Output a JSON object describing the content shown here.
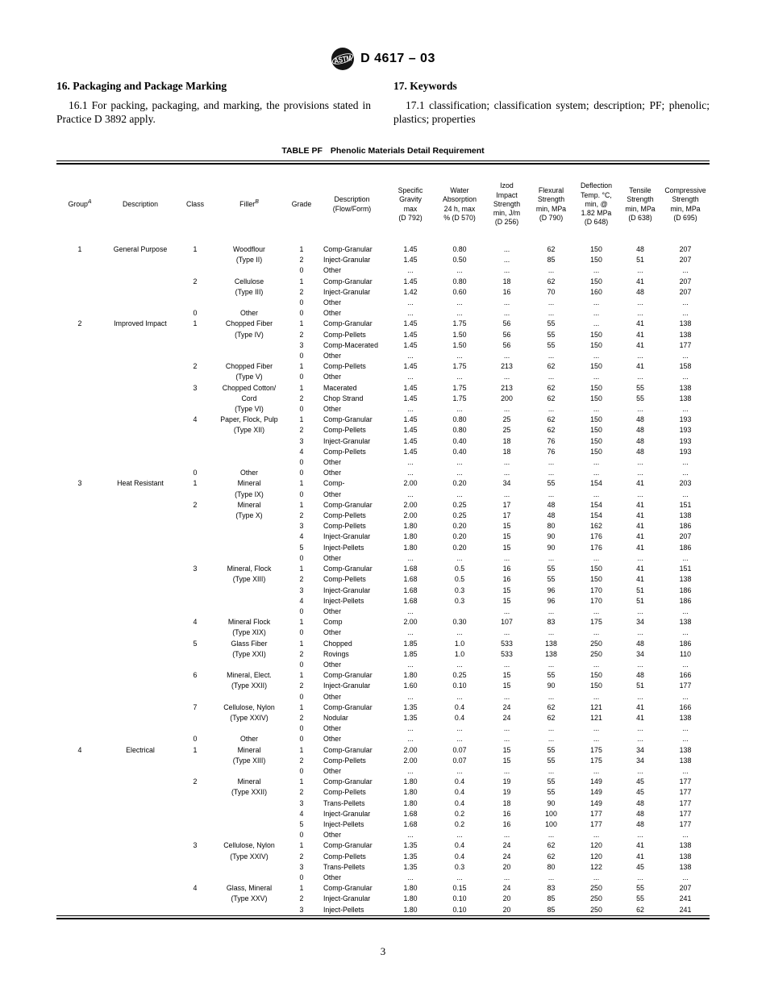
{
  "header": {
    "designation": "D 4617 – 03",
    "logo_icon": "astm-logo"
  },
  "sections": {
    "left": {
      "heading": "16.  Packaging and Package Marking",
      "para": "16.1 For packing, packaging, and marking, the provisions stated in Practice D 3892 apply."
    },
    "right": {
      "heading": "17.  Keywords",
      "para": "17.1 classification; classification system; description; PF; phenolic; plastics; properties"
    }
  },
  "table": {
    "label": "TABLE  PF",
    "title": "Phenolic Materials Detail Requirement",
    "columns": [
      {
        "label": "Group",
        "sup": "A"
      },
      {
        "label": "Description",
        "sup": ""
      },
      {
        "label": "Class",
        "sup": ""
      },
      {
        "label": "Filler",
        "sup": "B"
      },
      {
        "label": "Grade",
        "sup": ""
      },
      {
        "label": "Description\n(Flow/Form)",
        "sup": ""
      },
      {
        "label": "Specific\nGravity\nmax\n(D 792)",
        "sup": ""
      },
      {
        "label": "Water\nAbsorption\n24 h, max\n% (D 570)",
        "sup": ""
      },
      {
        "label": "Izod\nImpact\nStrength\nmin, J/m\n(D 256)",
        "sup": ""
      },
      {
        "label": "Flexural\nStrength\nmin, MPa\n(D 790)",
        "sup": ""
      },
      {
        "label": "Deflection\nTemp. °C,\nmin, @\n1.82 MPa\n(D 648)",
        "sup": ""
      },
      {
        "label": "Tensile\nStrength\nmin, MPa\n(D 638)",
        "sup": ""
      },
      {
        "label": "Compressive\nStrength\nmin, MPa\n(D 695)",
        "sup": ""
      }
    ],
    "rows": [
      [
        "1",
        "General Purpose",
        "1",
        "Woodflour",
        "1",
        "Comp-Granular",
        "1.45",
        "0.80",
        "...",
        "62",
        "150",
        "48",
        "207"
      ],
      [
        "",
        "",
        "",
        "(Type II)",
        "2",
        "Inject-Granular",
        "1.45",
        "0.50",
        "...",
        "85",
        "150",
        "51",
        "207"
      ],
      [
        "",
        "",
        "",
        "",
        "0",
        "Other",
        "...",
        "...",
        "...",
        "...",
        "...",
        "...",
        "..."
      ],
      [
        "",
        "",
        "2",
        "Cellulose",
        "1",
        "Comp-Granular",
        "1.45",
        "0.80",
        "18",
        "62",
        "150",
        "41",
        "207"
      ],
      [
        "",
        "",
        "",
        "(Type III)",
        "2",
        "Inject-Granular",
        "1.42",
        "0.60",
        "16",
        "70",
        "160",
        "48",
        "207"
      ],
      [
        "",
        "",
        "",
        "",
        "0",
        "Other",
        "...",
        "...",
        "...",
        "...",
        "...",
        "...",
        "..."
      ],
      [
        "",
        "",
        "0",
        "Other",
        "0",
        "Other",
        "...",
        "...",
        "...",
        "...",
        "...",
        "...",
        "..."
      ],
      [
        "2",
        "Improved Impact",
        "1",
        "Chopped Fiber",
        "1",
        "Comp-Granular",
        "1.45",
        "1.75",
        "56",
        "55",
        "...",
        "41",
        "138"
      ],
      [
        "",
        "",
        "",
        "(Type IV)",
        "2",
        "Comp-Pellets",
        "1.45",
        "1.50",
        "56",
        "55",
        "150",
        "41",
        "138"
      ],
      [
        "",
        "",
        "",
        "",
        "3",
        "Comp-Macerated",
        "1.45",
        "1.50",
        "56",
        "55",
        "150",
        "41",
        "177"
      ],
      [
        "",
        "",
        "",
        "",
        "0",
        "Other",
        "...",
        "...",
        "...",
        "...",
        "...",
        "...",
        "..."
      ],
      [
        "",
        "",
        "2",
        "Chopped Fiber",
        "1",
        "Comp-Pellets",
        "1.45",
        "1.75",
        "213",
        "62",
        "150",
        "41",
        "158"
      ],
      [
        "",
        "",
        "",
        "(Type V)",
        "0",
        "Other",
        "...",
        "...",
        "...",
        "...",
        "...",
        "...",
        "..."
      ],
      [
        "",
        "",
        "3",
        "Chopped Cotton/",
        "1",
        "Macerated",
        "1.45",
        "1.75",
        "213",
        "62",
        "150",
        "55",
        "138"
      ],
      [
        "",
        "",
        "",
        "Cord",
        "2",
        "Chop Strand",
        "1.45",
        "1.75",
        "200",
        "62",
        "150",
        "55",
        "138"
      ],
      [
        "",
        "",
        "",
        "(Type VI)",
        "0",
        "Other",
        "...",
        "...",
        "...",
        "...",
        "...",
        "...",
        "..."
      ],
      [
        "",
        "",
        "4",
        "Paper, Flock, Pulp",
        "1",
        "Comp-Granular",
        "1.45",
        "0.80",
        "25",
        "62",
        "150",
        "48",
        "193"
      ],
      [
        "",
        "",
        "",
        "(Type XII)",
        "2",
        "Comp-Pellets",
        "1.45",
        "0.80",
        "25",
        "62",
        "150",
        "48",
        "193"
      ],
      [
        "",
        "",
        "",
        "",
        "3",
        "Inject-Granular",
        "1.45",
        "0.40",
        "18",
        "76",
        "150",
        "48",
        "193"
      ],
      [
        "",
        "",
        "",
        "",
        "4",
        "Comp-Pellets",
        "1.45",
        "0.40",
        "18",
        "76",
        "150",
        "48",
        "193"
      ],
      [
        "",
        "",
        "",
        "",
        "0",
        "Other",
        "...",
        "...",
        "...",
        "...",
        "...",
        "...",
        "..."
      ],
      [
        "",
        "",
        "0",
        "Other",
        "0",
        "Other",
        "...",
        "...",
        "...",
        "...",
        "...",
        "...",
        "..."
      ],
      [
        "3",
        "Heat Resistant",
        "1",
        "Mineral",
        "1",
        "Comp-",
        "2.00",
        "0.20",
        "34",
        "55",
        "154",
        "41",
        "203"
      ],
      [
        "",
        "",
        "",
        "(Type IX)",
        "0",
        "Other",
        "...",
        "...",
        "...",
        "...",
        "...",
        "...",
        "..."
      ],
      [
        "",
        "",
        "2",
        "Mineral",
        "1",
        "Comp-Granular",
        "2.00",
        "0.25",
        "17",
        "48",
        "154",
        "41",
        "151"
      ],
      [
        "",
        "",
        "",
        "(Type X)",
        "2",
        "Comp-Pellets",
        "2.00",
        "0.25",
        "17",
        "48",
        "154",
        "41",
        "138"
      ],
      [
        "",
        "",
        "",
        "",
        "3",
        "Comp-Pellets",
        "1.80",
        "0.20",
        "15",
        "80",
        "162",
        "41",
        "186"
      ],
      [
        "",
        "",
        "",
        "",
        "4",
        "Inject-Granular",
        "1.80",
        "0.20",
        "15",
        "90",
        "176",
        "41",
        "207"
      ],
      [
        "",
        "",
        "",
        "",
        "5",
        "Inject-Pellets",
        "1.80",
        "0.20",
        "15",
        "90",
        "176",
        "41",
        "186"
      ],
      [
        "",
        "",
        "",
        "",
        "0",
        "Other",
        "...",
        "...",
        "...",
        "...",
        "...",
        "...",
        "..."
      ],
      [
        "",
        "",
        "3",
        "Mineral, Flock",
        "1",
        "Comp-Granular",
        "1.68",
        "0.5",
        "16",
        "55",
        "150",
        "41",
        "151"
      ],
      [
        "",
        "",
        "",
        "(Type XIII)",
        "2",
        "Comp-Pellets",
        "1.68",
        "0.5",
        "16",
        "55",
        "150",
        "41",
        "138"
      ],
      [
        "",
        "",
        "",
        "",
        "3",
        "Inject-Granular",
        "1.68",
        "0.3",
        "15",
        "96",
        "170",
        "51",
        "186"
      ],
      [
        "",
        "",
        "",
        "",
        "4",
        "Inject-Pellets",
        "1.68",
        "0.3",
        "15",
        "96",
        "170",
        "51",
        "186"
      ],
      [
        "",
        "",
        "",
        "",
        "0",
        "Other",
        "...",
        "",
        "...",
        "...",
        "...",
        "...",
        "..."
      ],
      [
        "",
        "",
        "4",
        "Mineral Flock",
        "1",
        "Comp",
        "2.00",
        "0.30",
        "107",
        "83",
        "175",
        "34",
        "138"
      ],
      [
        "",
        "",
        "",
        "(Type XIX)",
        "0",
        "Other",
        "...",
        "...",
        "...",
        "...",
        "...",
        "...",
        "..."
      ],
      [
        "",
        "",
        "5",
        "Glass Fiber",
        "1",
        "Chopped",
        "1.85",
        "1.0",
        "533",
        "138",
        "250",
        "48",
        "186"
      ],
      [
        "",
        "",
        "",
        "(Type XXI)",
        "2",
        "Rovings",
        "1.85",
        "1.0",
        "533",
        "138",
        "250",
        "34",
        "110"
      ],
      [
        "",
        "",
        "",
        "",
        "0",
        "Other",
        "...",
        "...",
        "...",
        "...",
        "...",
        "...",
        "..."
      ],
      [
        "",
        "",
        "6",
        "Mineral, Elect.",
        "1",
        "Comp-Granular",
        "1.80",
        "0.25",
        "15",
        "55",
        "150",
        "48",
        "166"
      ],
      [
        "",
        "",
        "",
        "(Type XXII)",
        "2",
        "Inject-Granular",
        "1.60",
        "0.10",
        "15",
        "90",
        "150",
        "51",
        "177"
      ],
      [
        "",
        "",
        "",
        "",
        "0",
        "Other",
        "...",
        "...",
        "...",
        "...",
        "...",
        "...",
        "..."
      ],
      [
        "",
        "",
        "7",
        "Cellulose, Nylon",
        "1",
        "Comp-Granular",
        "1.35",
        "0.4",
        "24",
        "62",
        "121",
        "41",
        "166"
      ],
      [
        "",
        "",
        "",
        "(Type XXIV)",
        "2",
        "Nodular",
        "1.35",
        "0.4",
        "24",
        "62",
        "121",
        "41",
        "138"
      ],
      [
        "",
        "",
        "",
        "",
        "0",
        "Other",
        "...",
        "...",
        "...",
        "...",
        "...",
        "...",
        "..."
      ],
      [
        "",
        "",
        "0",
        "Other",
        "0",
        "Other",
        "...",
        "...",
        "...",
        "...",
        "...",
        "...",
        "..."
      ],
      [
        "4",
        "Electrical",
        "1",
        "Mineral",
        "1",
        "Comp-Granular",
        "2.00",
        "0.07",
        "15",
        "55",
        "175",
        "34",
        "138"
      ],
      [
        "",
        "",
        "",
        "(Type XIII)",
        "2",
        "Comp-Pellets",
        "2.00",
        "0.07",
        "15",
        "55",
        "175",
        "34",
        "138"
      ],
      [
        "",
        "",
        "",
        "",
        "0",
        "Other",
        "...",
        "...",
        "...",
        "...",
        "...",
        "...",
        "..."
      ],
      [
        "",
        "",
        "2",
        "Mineral",
        "1",
        "Comp-Granular",
        "1.80",
        "0.4",
        "19",
        "55",
        "149",
        "45",
        "177"
      ],
      [
        "",
        "",
        "",
        "(Type XXII)",
        "2",
        "Comp-Pellets",
        "1.80",
        "0.4",
        "19",
        "55",
        "149",
        "45",
        "177"
      ],
      [
        "",
        "",
        "",
        "",
        "3",
        "Trans-Pellets",
        "1.80",
        "0.4",
        "18",
        "90",
        "149",
        "48",
        "177"
      ],
      [
        "",
        "",
        "",
        "",
        "4",
        "Inject-Granular",
        "1.68",
        "0.2",
        "16",
        "100",
        "177",
        "48",
        "177"
      ],
      [
        "",
        "",
        "",
        "",
        "5",
        "Inject-Pellets",
        "1.68",
        "0.2",
        "16",
        "100",
        "177",
        "48",
        "177"
      ],
      [
        "",
        "",
        "",
        "",
        "0",
        "Other",
        "...",
        "...",
        "...",
        "...",
        "...",
        "...",
        "..."
      ],
      [
        "",
        "",
        "3",
        "Cellulose, Nylon",
        "1",
        "Comp-Granular",
        "1.35",
        "0.4",
        "24",
        "62",
        "120",
        "41",
        "138"
      ],
      [
        "",
        "",
        "",
        "(Type XXIV)",
        "2",
        "Comp-Pellets",
        "1.35",
        "0.4",
        "24",
        "62",
        "120",
        "41",
        "138"
      ],
      [
        "",
        "",
        "",
        "",
        "3",
        "Trans-Pellets",
        "1.35",
        "0.3",
        "20",
        "80",
        "122",
        "45",
        "138"
      ],
      [
        "",
        "",
        "",
        "",
        "0",
        "Other",
        "...",
        "...",
        "...",
        "...",
        "...",
        "...",
        "..."
      ],
      [
        "",
        "",
        "4",
        "Glass, Mineral",
        "1",
        "Comp-Granular",
        "1.80",
        "0.15",
        "24",
        "83",
        "250",
        "55",
        "207"
      ],
      [
        "",
        "",
        "",
        "(Type XXV)",
        "2",
        "Inject-Granular",
        "1.80",
        "0.10",
        "20",
        "85",
        "250",
        "55",
        "241"
      ],
      [
        "",
        "",
        "",
        "",
        "3",
        "Inject-Pellets",
        "1.80",
        "0.10",
        "20",
        "85",
        "250",
        "62",
        "241"
      ]
    ]
  },
  "footer": {
    "page_number": "3"
  }
}
